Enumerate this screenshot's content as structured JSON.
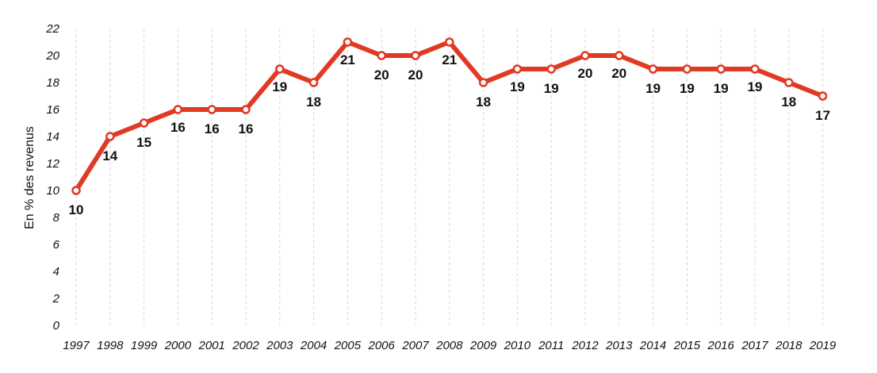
{
  "chart_data": {
    "type": "line",
    "title": "",
    "xlabel": "",
    "ylabel": "En % des revenus",
    "ylim": [
      0,
      22
    ],
    "yticks": [
      "0",
      "2",
      "4",
      "6",
      "8",
      "10",
      "12",
      "14",
      "16",
      "18",
      "20",
      "22"
    ],
    "categories": [
      "1997",
      "1998",
      "1999",
      "2000",
      "2001",
      "2002",
      "2003",
      "2004",
      "2005",
      "2006",
      "2007",
      "2008",
      "2009",
      "2010",
      "2011",
      "2012",
      "2013",
      "2014",
      "2015",
      "2016",
      "2017",
      "2018",
      "2019"
    ],
    "values": [
      10,
      14,
      15,
      16,
      16,
      16,
      19,
      18,
      21,
      20,
      20,
      21,
      18,
      19,
      19,
      20,
      20,
      19,
      19,
      19,
      19,
      18,
      17
    ],
    "grid": "vertical dashed",
    "line_color": "#e03a24"
  }
}
